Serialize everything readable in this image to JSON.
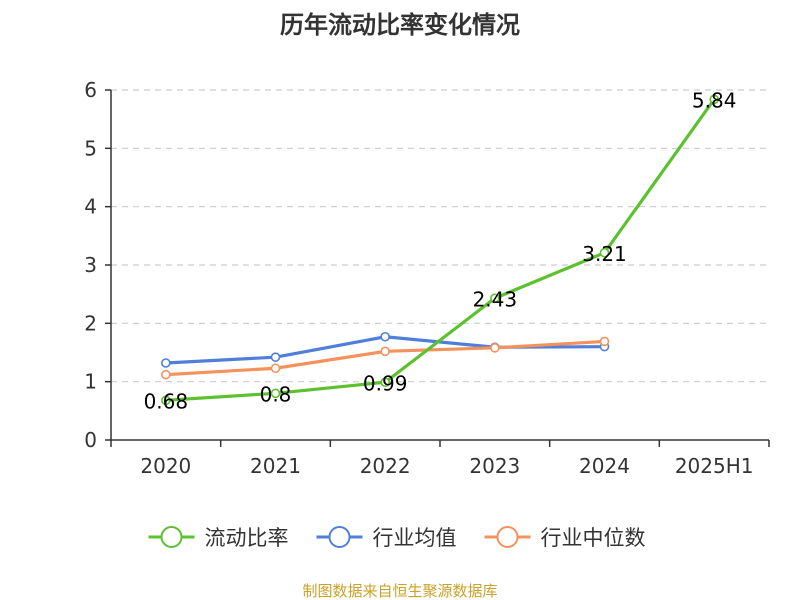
{
  "chart_data": {
    "type": "line",
    "title": "历年流动比率变化情况",
    "categories": [
      "2020",
      "2021",
      "2022",
      "2023",
      "2024",
      "2025H1"
    ],
    "ylim": [
      0,
      6
    ],
    "yticks": [
      "0",
      "1",
      "2",
      "3",
      "4",
      "5",
      "6"
    ],
    "grid": true,
    "legend_position": "bottom",
    "series": [
      {
        "name": "流动比率",
        "color": "#5cc12e",
        "values": [
          0.68,
          0.8,
          0.99,
          2.43,
          3.21,
          5.84
        ],
        "labels": [
          "0.68",
          "0.8",
          "0.99",
          "2.43",
          "3.21",
          "5.84"
        ]
      },
      {
        "name": "行业均值",
        "color": "#4f7fdb",
        "values": [
          1.32,
          1.42,
          1.77,
          1.59,
          1.6,
          null
        ]
      },
      {
        "name": "行业中位数",
        "color": "#f5925c",
        "values": [
          1.12,
          1.23,
          1.52,
          1.58,
          1.69,
          null
        ]
      }
    ],
    "source": "制图数据来自恒生聚源数据库"
  }
}
